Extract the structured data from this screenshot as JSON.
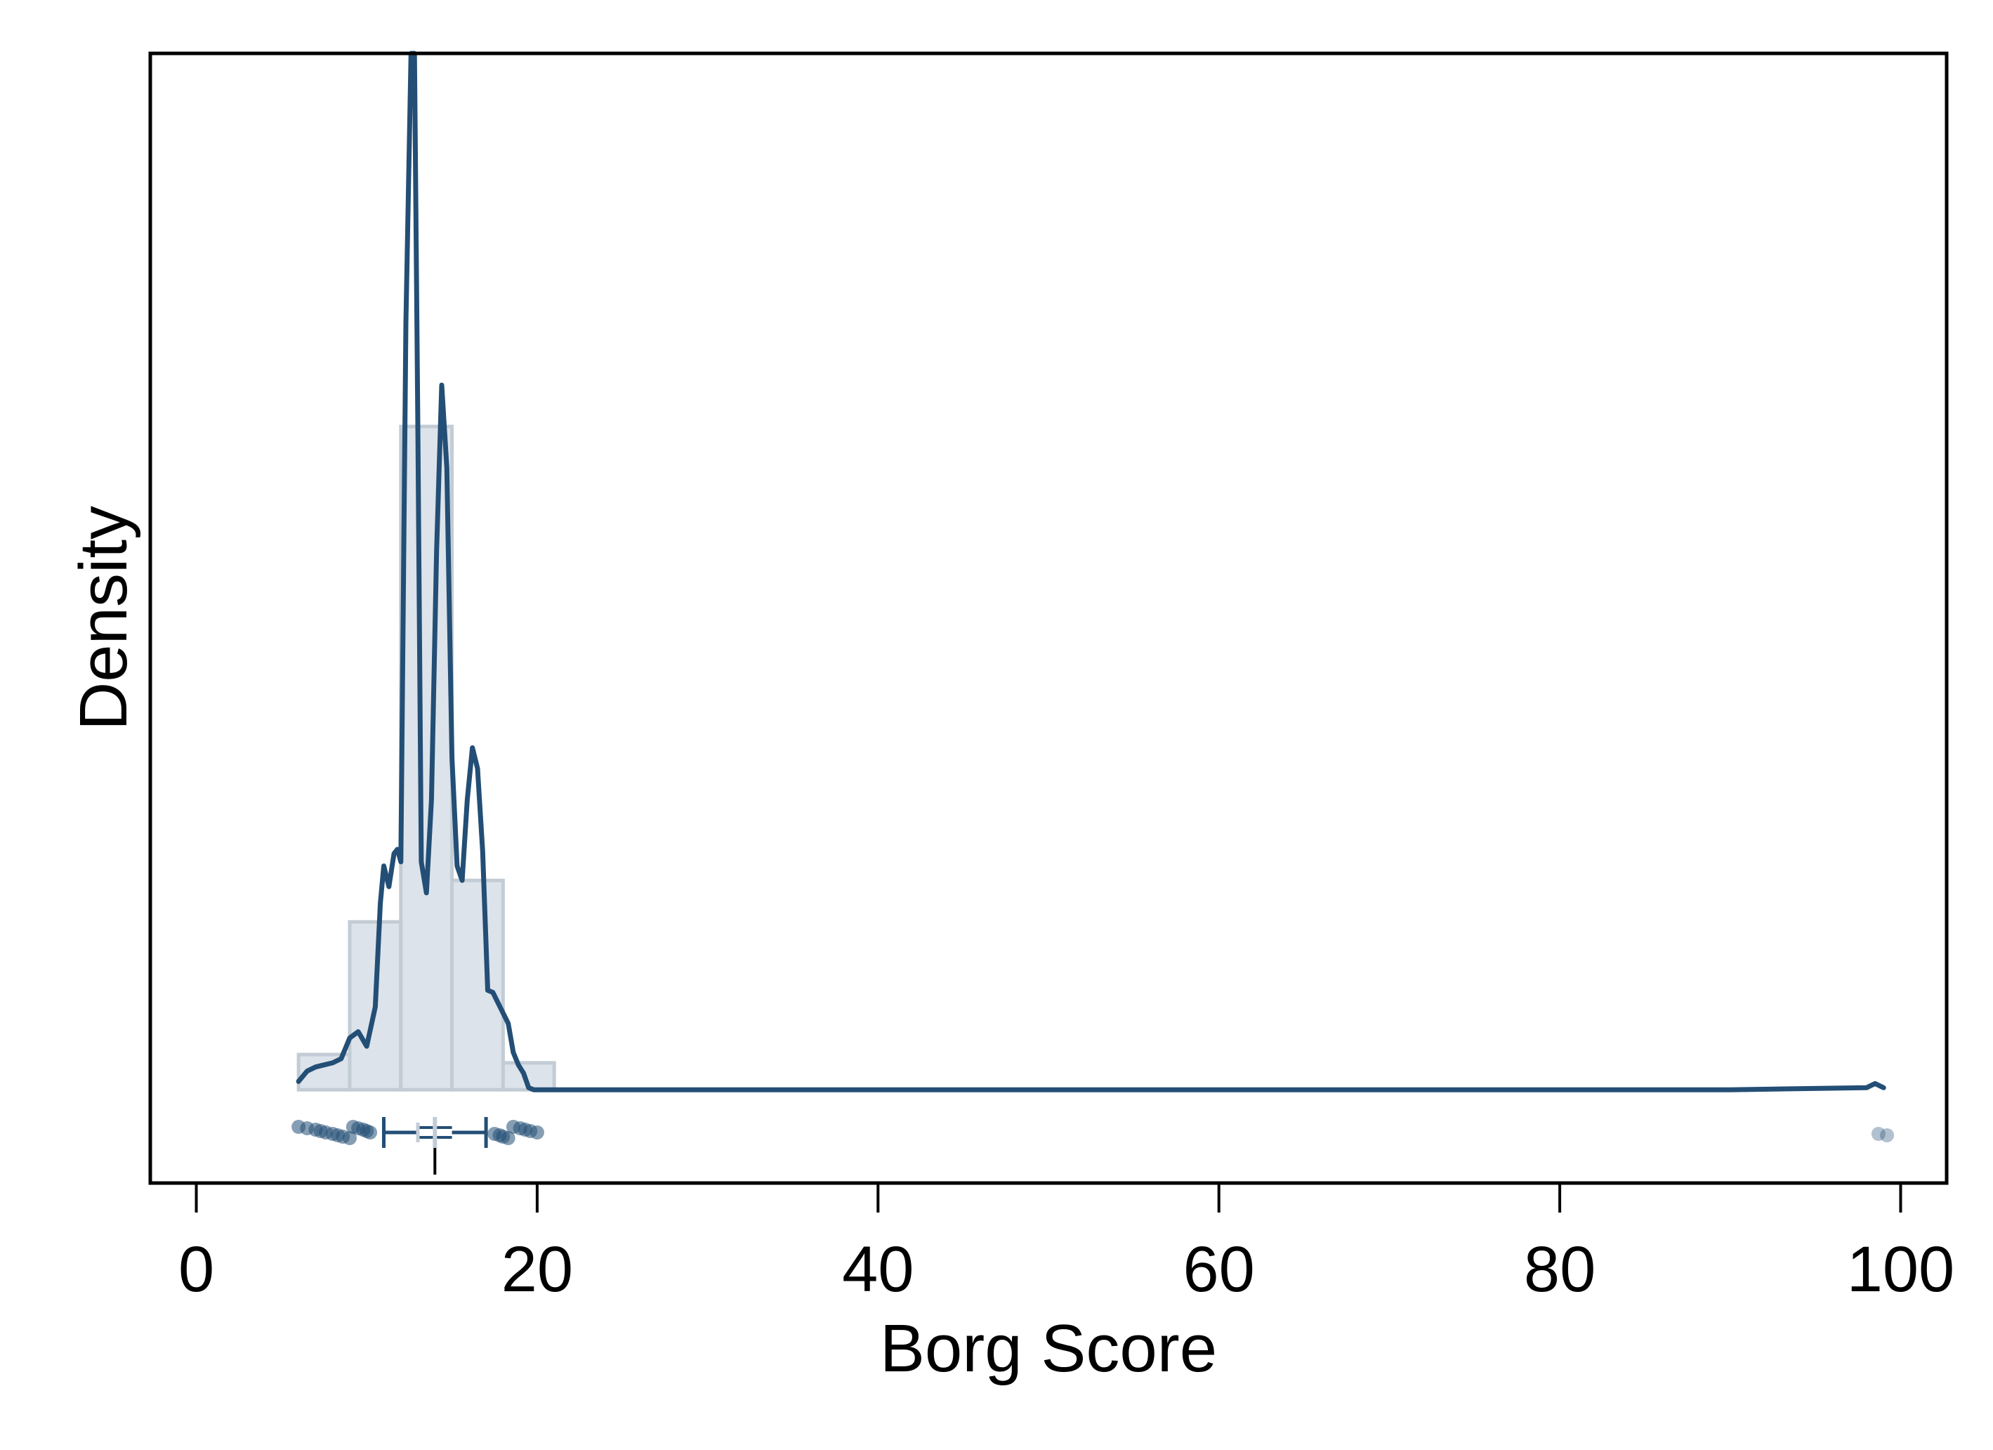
{
  "chart_data": {
    "type": "histogram",
    "xlabel": "Borg Score",
    "ylabel": "Density",
    "xlim": [
      -2.7,
      102.7
    ],
    "ylim": [
      -0.045,
      0.5
    ],
    "x_ticks": [
      0,
      20,
      40,
      60,
      80,
      100
    ],
    "y_ticks_shown": false,
    "grid": false,
    "histogram": {
      "bin_edges": [
        6,
        9,
        12,
        15,
        18,
        21
      ],
      "density": [
        0.017,
        0.081,
        0.32,
        0.101,
        0.013
      ]
    },
    "kde": {
      "x": [
        6,
        6.5,
        7,
        7.5,
        8,
        8.5,
        9,
        9.5,
        10,
        10.5,
        10.8,
        11,
        11.3,
        11.6,
        11.8,
        12,
        12.3,
        12.6,
        12.8,
        13,
        13.2,
        13.5,
        13.8,
        14.1,
        14.4,
        14.7,
        15,
        15.3,
        15.6,
        15.9,
        16.2,
        16.5,
        16.8,
        17.1,
        17.4,
        17.7,
        18,
        18.3,
        18.6,
        18.9,
        19.2,
        19.5,
        19.8,
        20.1,
        20.4,
        20.7,
        21,
        22,
        30,
        50,
        70,
        90,
        98,
        98.5,
        99
      ],
      "y": [
        0.004,
        0.009,
        0.011,
        0.012,
        0.013,
        0.015,
        0.025,
        0.028,
        0.021,
        0.04,
        0.09,
        0.108,
        0.098,
        0.114,
        0.116,
        0.11,
        0.37,
        0.5,
        0.5,
        0.32,
        0.11,
        0.095,
        0.14,
        0.26,
        0.34,
        0.3,
        0.16,
        0.108,
        0.101,
        0.14,
        0.165,
        0.155,
        0.115,
        0.048,
        0.047,
        0.042,
        0.037,
        0.032,
        0.018,
        0.012,
        0.008,
        0.001,
        0.0,
        0.0,
        0.0,
        0.0,
        0.0,
        0.0,
        0.0,
        0.0,
        0.0,
        0.0,
        0.001,
        0.003,
        0.001
      ],
      "color": "#234e75"
    },
    "boxplot": {
      "whisker_low": 11,
      "q1": 13,
      "median": 14,
      "q3": 15,
      "whisker_high": 17,
      "color": "#234e75"
    },
    "points": {
      "x": [
        6,
        6.5,
        7,
        7.3,
        7.6,
        8,
        8.3,
        8.6,
        9,
        9.2,
        9.5,
        9.8,
        10,
        10.2,
        17.5,
        17.8,
        18,
        18.3,
        18.6,
        19,
        19.3,
        19.6,
        20,
        98.7,
        99.2
      ],
      "color": "#234e75"
    },
    "histogram_fill": "#dce3ea",
    "histogram_stroke": "#c3ccd5"
  }
}
